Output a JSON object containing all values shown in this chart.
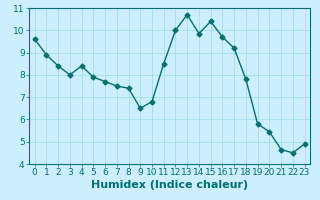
{
  "xlabel": "Humidex (Indice chaleur)",
  "ylabel": "",
  "x": [
    0,
    1,
    2,
    3,
    4,
    5,
    6,
    7,
    8,
    9,
    10,
    11,
    12,
    13,
    14,
    15,
    16,
    17,
    18,
    19,
    20,
    21,
    22,
    23
  ],
  "y": [
    9.6,
    8.9,
    8.4,
    8.0,
    8.4,
    7.9,
    7.7,
    7.5,
    7.4,
    6.5,
    6.8,
    8.5,
    10.0,
    10.7,
    9.85,
    10.4,
    9.7,
    9.2,
    7.8,
    5.8,
    5.45,
    4.65,
    4.5,
    4.9
  ],
  "xlim": [
    -0.5,
    23.5
  ],
  "ylim": [
    4,
    11
  ],
  "yticks": [
    4,
    5,
    6,
    7,
    8,
    9,
    10,
    11
  ],
  "xticks": [
    0,
    1,
    2,
    3,
    4,
    5,
    6,
    7,
    8,
    9,
    10,
    11,
    12,
    13,
    14,
    15,
    16,
    17,
    18,
    19,
    20,
    21,
    22,
    23
  ],
  "line_color": "#007070",
  "marker": "D",
  "marker_size": 2.5,
  "bg_color": "#cceeff",
  "grid_color": "#99dddd",
  "tick_label_fontsize": 6.5,
  "xlabel_fontsize": 8,
  "xlabel_fontweight": "bold"
}
